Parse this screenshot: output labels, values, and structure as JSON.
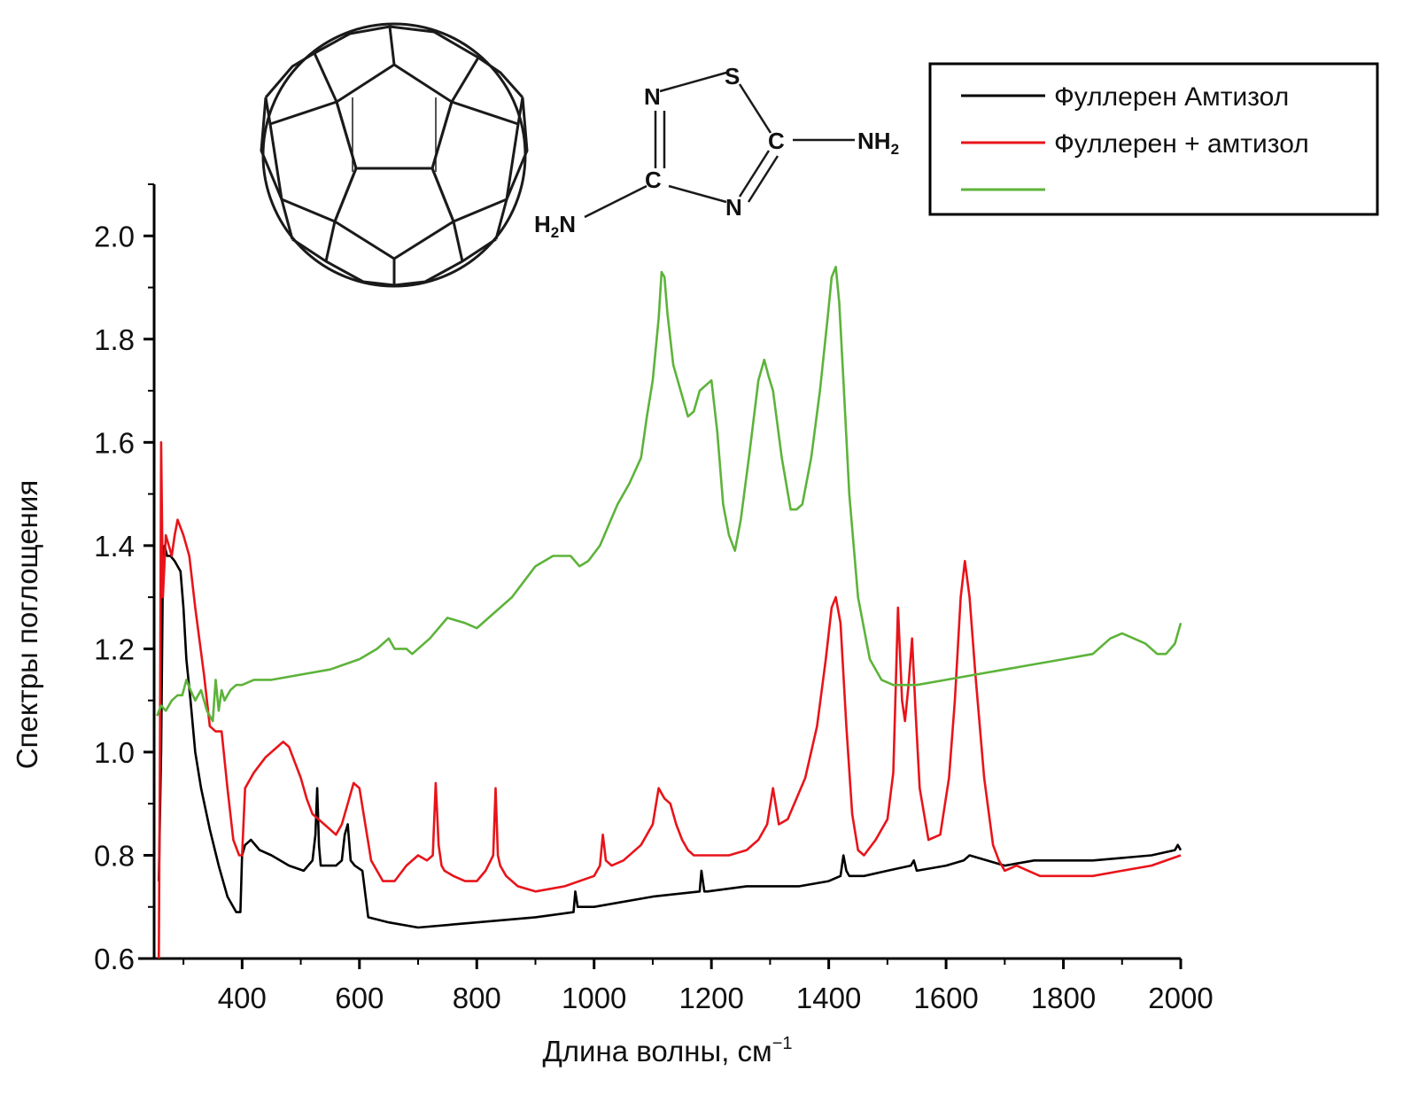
{
  "chart_data": {
    "type": "line",
    "title": "",
    "xlabel": "Длина волны, см",
    "xlabel_sup": "−1",
    "ylabel": "Спектры поглощения",
    "xlim": [
      250,
      2000
    ],
    "ylim": [
      0.6,
      2.1
    ],
    "xticks": [
      "400",
      "600",
      "800",
      "1000",
      "1200",
      "1400",
      "1600",
      "1800",
      "2000"
    ],
    "xtick_values": [
      400,
      600,
      800,
      1000,
      1200,
      1400,
      1600,
      1800,
      2000
    ],
    "yticks": [
      "0.6",
      "0.8",
      "1.0",
      "1.2",
      "1.4",
      "1.6",
      "1.8",
      "2.0"
    ],
    "ytick_values": [
      0.6,
      0.8,
      1.0,
      1.2,
      1.4,
      1.6,
      1.8,
      2.0
    ],
    "grid": false,
    "legend_position": "top-right",
    "series": [
      {
        "name": "Фуллерен Амтизол",
        "color": "#000000",
        "x": [
          258,
          262,
          265,
          268,
          272,
          278,
          285,
          295,
          300,
          305,
          312,
          320,
          330,
          345,
          360,
          375,
          390,
          397,
          400,
          405,
          415,
          430,
          450,
          480,
          505,
          520,
          525,
          528,
          531,
          534,
          540,
          560,
          570,
          575,
          580,
          585,
          592,
          605,
          615,
          650,
          700,
          800,
          900,
          965,
          968,
          972,
          1000,
          1100,
          1180,
          1183,
          1188,
          1193,
          1260,
          1350,
          1400,
          1420,
          1425,
          1430,
          1435,
          1460,
          1500,
          1540,
          1545,
          1550,
          1600,
          1630,
          1640,
          1700,
          1750,
          1850,
          1950,
          1990,
          1995,
          2000
        ],
        "y": [
          0.75,
          1.0,
          1.35,
          1.4,
          1.38,
          1.38,
          1.37,
          1.35,
          1.28,
          1.18,
          1.1,
          1.0,
          0.93,
          0.85,
          0.78,
          0.72,
          0.69,
          0.69,
          0.8,
          0.82,
          0.83,
          0.81,
          0.8,
          0.78,
          0.77,
          0.79,
          0.84,
          0.93,
          0.82,
          0.78,
          0.78,
          0.78,
          0.79,
          0.84,
          0.86,
          0.79,
          0.78,
          0.77,
          0.68,
          0.67,
          0.66,
          0.67,
          0.68,
          0.69,
          0.73,
          0.7,
          0.7,
          0.72,
          0.73,
          0.77,
          0.73,
          0.73,
          0.74,
          0.74,
          0.75,
          0.76,
          0.8,
          0.77,
          0.76,
          0.76,
          0.77,
          0.78,
          0.79,
          0.77,
          0.78,
          0.79,
          0.8,
          0.78,
          0.79,
          0.79,
          0.8,
          0.81,
          0.82,
          0.81
        ]
      },
      {
        "name": "Фуллерен + амтизол",
        "color": "#e8141a",
        "x": [
          258,
          260,
          262,
          265,
          270,
          275,
          280,
          285,
          290,
          300,
          310,
          320,
          335,
          345,
          355,
          365,
          375,
          385,
          395,
          400,
          405,
          420,
          440,
          460,
          470,
          480,
          490,
          500,
          510,
          520,
          530,
          540,
          550,
          560,
          570,
          580,
          590,
          600,
          610,
          620,
          640,
          660,
          680,
          700,
          715,
          725,
          730,
          735,
          740,
          745,
          760,
          780,
          800,
          815,
          828,
          832,
          836,
          840,
          850,
          870,
          900,
          950,
          1000,
          1010,
          1015,
          1020,
          1030,
          1050,
          1080,
          1100,
          1110,
          1120,
          1130,
          1140,
          1150,
          1160,
          1170,
          1200,
          1230,
          1260,
          1280,
          1295,
          1305,
          1315,
          1330,
          1360,
          1380,
          1395,
          1405,
          1412,
          1420,
          1430,
          1440,
          1450,
          1460,
          1480,
          1500,
          1510,
          1518,
          1525,
          1530,
          1536,
          1542,
          1548,
          1555,
          1570,
          1590,
          1605,
          1615,
          1625,
          1632,
          1640,
          1650,
          1665,
          1680,
          1690,
          1700,
          1720,
          1740,
          1760,
          1800,
          1850,
          1900,
          1950,
          2000
        ],
        "y": [
          0.6,
          1.0,
          1.6,
          1.3,
          1.42,
          1.4,
          1.38,
          1.42,
          1.45,
          1.42,
          1.38,
          1.28,
          1.15,
          1.05,
          1.04,
          1.04,
          0.93,
          0.83,
          0.8,
          0.8,
          0.93,
          0.96,
          0.99,
          1.01,
          1.02,
          1.01,
          0.98,
          0.95,
          0.91,
          0.88,
          0.87,
          0.86,
          0.85,
          0.84,
          0.86,
          0.9,
          0.94,
          0.93,
          0.86,
          0.79,
          0.75,
          0.75,
          0.78,
          0.8,
          0.79,
          0.8,
          0.94,
          0.82,
          0.78,
          0.77,
          0.76,
          0.75,
          0.75,
          0.77,
          0.8,
          0.93,
          0.8,
          0.78,
          0.76,
          0.74,
          0.73,
          0.74,
          0.76,
          0.78,
          0.84,
          0.79,
          0.78,
          0.79,
          0.82,
          0.86,
          0.93,
          0.91,
          0.9,
          0.86,
          0.83,
          0.81,
          0.8,
          0.8,
          0.8,
          0.81,
          0.83,
          0.86,
          0.93,
          0.86,
          0.87,
          0.95,
          1.05,
          1.18,
          1.28,
          1.3,
          1.25,
          1.05,
          0.88,
          0.81,
          0.8,
          0.83,
          0.87,
          0.96,
          1.28,
          1.1,
          1.06,
          1.13,
          1.22,
          1.08,
          0.93,
          0.83,
          0.84,
          0.95,
          1.1,
          1.3,
          1.37,
          1.3,
          1.15,
          0.95,
          0.82,
          0.79,
          0.77,
          0.78,
          0.77,
          0.76,
          0.76,
          0.76,
          0.77,
          0.78,
          0.8
        ]
      },
      {
        "name": "",
        "color": "#5db33a",
        "x": [
          255,
          262,
          270,
          280,
          290,
          298,
          305,
          312,
          320,
          330,
          340,
          350,
          355,
          360,
          365,
          370,
          380,
          390,
          400,
          420,
          450,
          500,
          550,
          600,
          630,
          650,
          660,
          680,
          690,
          720,
          750,
          780,
          800,
          830,
          860,
          880,
          900,
          930,
          960,
          975,
          990,
          1010,
          1040,
          1060,
          1080,
          1090,
          1100,
          1110,
          1115,
          1120,
          1125,
          1135,
          1150,
          1160,
          1170,
          1180,
          1190,
          1200,
          1210,
          1220,
          1230,
          1240,
          1250,
          1265,
          1280,
          1290,
          1297,
          1305,
          1320,
          1335,
          1345,
          1355,
          1370,
          1385,
          1398,
          1405,
          1412,
          1418,
          1425,
          1435,
          1450,
          1470,
          1490,
          1510,
          1530,
          1550,
          1600,
          1650,
          1700,
          1750,
          1800,
          1850,
          1880,
          1900,
          1920,
          1940,
          1960,
          1975,
          1990,
          2000
        ],
        "y": [
          1.07,
          1.09,
          1.08,
          1.1,
          1.11,
          1.11,
          1.14,
          1.12,
          1.1,
          1.12,
          1.08,
          1.06,
          1.14,
          1.08,
          1.12,
          1.1,
          1.12,
          1.13,
          1.13,
          1.14,
          1.14,
          1.15,
          1.16,
          1.18,
          1.2,
          1.22,
          1.2,
          1.2,
          1.19,
          1.22,
          1.26,
          1.25,
          1.24,
          1.27,
          1.3,
          1.33,
          1.36,
          1.38,
          1.38,
          1.36,
          1.37,
          1.4,
          1.48,
          1.52,
          1.57,
          1.65,
          1.72,
          1.84,
          1.93,
          1.92,
          1.85,
          1.75,
          1.69,
          1.65,
          1.66,
          1.7,
          1.71,
          1.72,
          1.62,
          1.48,
          1.42,
          1.39,
          1.45,
          1.58,
          1.72,
          1.76,
          1.73,
          1.7,
          1.57,
          1.47,
          1.47,
          1.48,
          1.57,
          1.7,
          1.84,
          1.92,
          1.94,
          1.87,
          1.72,
          1.5,
          1.3,
          1.18,
          1.14,
          1.13,
          1.13,
          1.13,
          1.14,
          1.15,
          1.16,
          1.17,
          1.18,
          1.19,
          1.22,
          1.23,
          1.22,
          1.21,
          1.19,
          1.19,
          1.21,
          1.25
        ]
      }
    ]
  },
  "molecule": {
    "atoms": [
      "N",
      "S",
      "C",
      "C",
      "N"
    ],
    "nh2_right": "NH",
    "nh2_right_sub": "2",
    "h2n_left_h": "H",
    "h2n_left_sub": "2",
    "h2n_left_n": "N"
  }
}
